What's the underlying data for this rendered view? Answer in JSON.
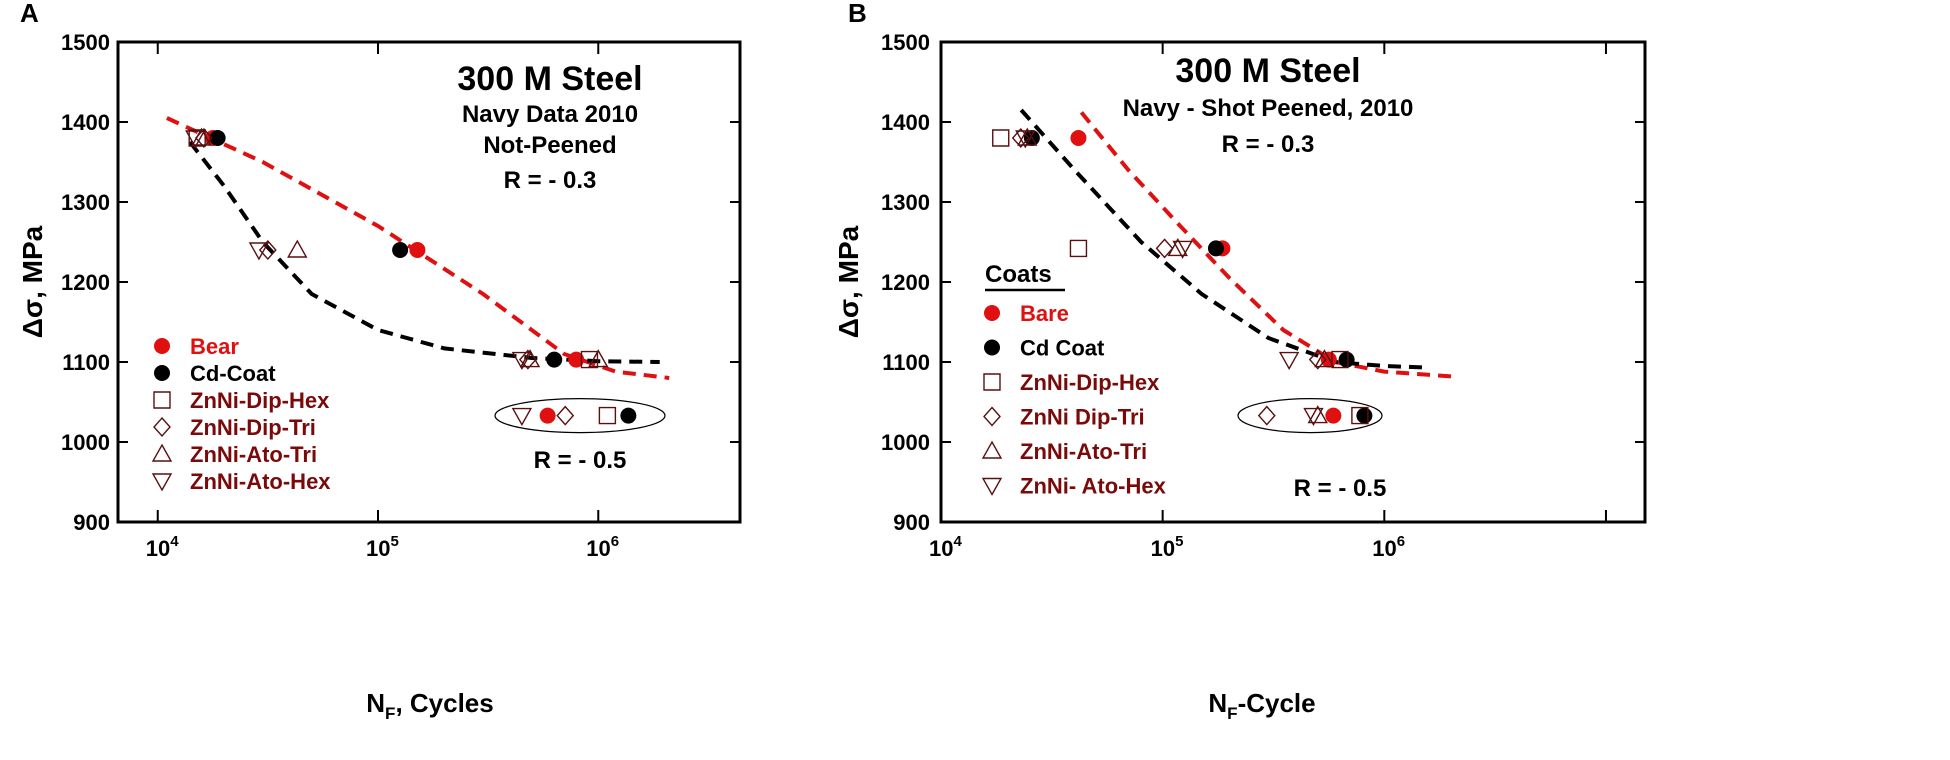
{
  "colors": {
    "bare": "#e01010",
    "cd": "#000000",
    "coat_text": "#7a0a0a",
    "coat_marker": "#5a1010",
    "red_fit": "#e01010",
    "black_fit": "#000000"
  },
  "chart_data": [
    {
      "type": "scatter",
      "panel_label": "A",
      "x_scale": "log",
      "xlim": [
        6600,
        4400000
      ],
      "ylim": [
        900,
        1500
      ],
      "xticks": [
        10000,
        100000,
        1000000
      ],
      "xtick_labels": [
        [
          "10",
          "4"
        ],
        [
          "10",
          "5"
        ],
        [
          "10",
          "6"
        ]
      ],
      "yticks": [
        900,
        1000,
        1100,
        1200,
        1300,
        1400,
        1500
      ],
      "xlabel": {
        "main": "N",
        "sub": "F",
        "rest": ", Cycles"
      },
      "ylabel": "Δσ, MPa",
      "grid": false,
      "annotations": [
        "300 M Steel",
        "Navy Data 2010",
        "Not-Peened",
        "R = - 0.3"
      ],
      "annotation_r05": "R = - 0.5",
      "legend_title": "",
      "legend_position": "bottom-left",
      "series": [
        {
          "name": "Bear",
          "marker": "filled-circle",
          "color": "bare",
          "points": [
            [
              17800,
              1380
            ],
            [
              151000,
              1240
            ],
            [
              794000,
              1103
            ],
            [
              589000,
              1033
            ]
          ]
        },
        {
          "name": "Cd-Coat",
          "marker": "filled-circle",
          "color": "cd",
          "points": [
            [
              18700,
              1380
            ],
            [
              126000,
              1240
            ],
            [
              631000,
              1103
            ],
            [
              1370000,
              1033
            ]
          ]
        },
        {
          "name": "ZnNi-Dip-Hex",
          "marker": "square",
          "color": "coat_marker",
          "points": [
            [
              15100,
              1380
            ],
            [
              912000,
              1103
            ],
            [
              1100000,
              1033
            ]
          ]
        },
        {
          "name": "ZnNi-Dip-Tri",
          "marker": "diamond",
          "color": "coat_marker",
          "points": [
            [
              16200,
              1380
            ],
            [
              31600,
              1240
            ],
            [
              479000,
              1103
            ],
            [
              708000,
              1033
            ]
          ]
        },
        {
          "name": "ZnNi-Ato-Tri",
          "marker": "triangle-up",
          "color": "coat_marker",
          "points": [
            [
              15800,
              1380
            ],
            [
              43000,
              1240
            ],
            [
              490000,
              1103
            ],
            [
              1000000,
              1103
            ]
          ]
        },
        {
          "name": "ZnNi-Ato-Hex",
          "marker": "triangle-down",
          "color": "coat_marker",
          "points": [
            [
              14800,
              1380
            ],
            [
              28800,
              1240
            ],
            [
              450000,
              1103
            ],
            [
              450000,
              1033
            ]
          ]
        }
      ],
      "fits": [
        {
          "color": "red_fit",
          "points": [
            [
              11000,
              1405
            ],
            [
              30000,
              1350
            ],
            [
              100000,
              1270
            ],
            [
              300000,
              1185
            ],
            [
              700000,
              1110
            ],
            [
              1200000,
              1088
            ],
            [
              2100000,
              1080
            ]
          ]
        },
        {
          "color": "black_fit",
          "points": [
            [
              14000,
              1375
            ],
            [
              20000,
              1320
            ],
            [
              30000,
              1250
            ],
            [
              50000,
              1185
            ],
            [
              100000,
              1140
            ],
            [
              200000,
              1117
            ],
            [
              500000,
              1105
            ],
            [
              1000000,
              1101
            ],
            [
              1900000,
              1100
            ]
          ]
        }
      ]
    },
    {
      "type": "scatter",
      "panel_label": "B",
      "x_scale": "log",
      "xlim": [
        10000,
        15000000
      ],
      "ylim": [
        900,
        1500
      ],
      "xticks": [
        10000,
        100000,
        1000000
      ],
      "xtick_labels": [
        [
          "10",
          "4"
        ],
        [
          "10",
          "5"
        ],
        [
          "10",
          "6"
        ]
      ],
      "yticks": [
        900,
        1000,
        1100,
        1200,
        1300,
        1400,
        1500
      ],
      "xlabel": {
        "main": "N",
        "sub": "F",
        "rest": "-Cycle"
      },
      "ylabel": "Δσ, MPa",
      "grid": false,
      "annotations": [
        "300 M Steel",
        "Navy - Shot Peened, 2010",
        "R = - 0.3"
      ],
      "annotation_r05": "R = - 0.5",
      "legend_title": "Coats",
      "legend_position": "bottom-left",
      "series": [
        {
          "name": "Bare",
          "marker": "filled-circle",
          "color": "bare",
          "points": [
            [
              41700,
              1380
            ],
            [
              186000,
              1242
            ],
            [
              562000,
              1103
            ],
            [
              589000,
              1033
            ]
          ]
        },
        {
          "name": "Cd Coat",
          "marker": "filled-circle",
          "color": "cd",
          "points": [
            [
              25700,
              1380
            ],
            [
              174000,
              1242
            ],
            [
              676000,
              1103
            ],
            [
              813000,
              1033
            ]
          ]
        },
        {
          "name": "ZnNi-Dip-Hex",
          "marker": "square",
          "color": "coat_marker",
          "points": [
            [
              18600,
              1380
            ],
            [
              41700,
              1242
            ],
            [
              631000,
              1103
            ],
            [
              776000,
              1033
            ]
          ]
        },
        {
          "name": "ZnNi Dip-Tri",
          "marker": "diamond",
          "color": "coat_marker",
          "points": [
            [
              22900,
              1380
            ],
            [
              102000,
              1242
            ],
            [
              501000,
              1103
            ],
            [
              295000,
              1033
            ]
          ]
        },
        {
          "name": "ZnNi-Ato-Tri",
          "marker": "triangle-up",
          "color": "coat_marker",
          "points": [
            [
              24500,
              1380
            ],
            [
              117000,
              1242
            ],
            [
              537000,
              1103
            ],
            [
              501000,
              1033
            ]
          ]
        },
        {
          "name": "ZnNi- Ato-Hex",
          "marker": "triangle-down",
          "color": "coat_marker",
          "points": [
            [
              24000,
              1380
            ],
            [
              123000,
              1242
            ],
            [
              372000,
              1103
            ],
            [
              479000,
              1033
            ]
          ]
        }
      ],
      "fits": [
        {
          "color": "red_fit",
          "points": [
            [
              43000,
              1412
            ],
            [
              70000,
              1340
            ],
            [
              120000,
              1270
            ],
            [
              200000,
              1205
            ],
            [
              350000,
              1140
            ],
            [
              600000,
              1100
            ],
            [
              1000000,
              1088
            ],
            [
              2000000,
              1082
            ]
          ]
        },
        {
          "color": "black_fit",
          "points": [
            [
              23000,
              1415
            ],
            [
              40000,
              1340
            ],
            [
              80000,
              1250
            ],
            [
              150000,
              1185
            ],
            [
              300000,
              1130
            ],
            [
              600000,
              1100
            ],
            [
              1000000,
              1095
            ],
            [
              1600000,
              1093
            ]
          ]
        }
      ]
    }
  ]
}
